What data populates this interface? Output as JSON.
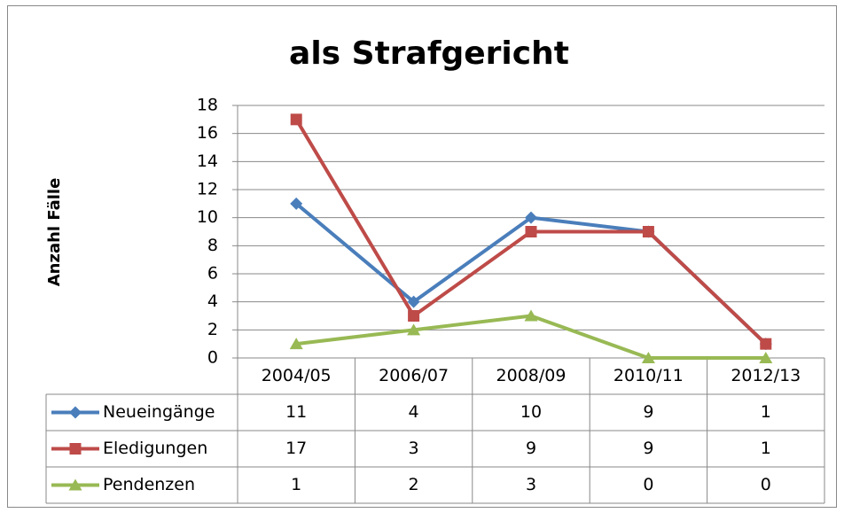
{
  "chart_data": {
    "type": "line",
    "title": "als Strafgericht",
    "y_label": "Anzahl Fälle",
    "categories": [
      "2004/05",
      "2006/07",
      "2008/09",
      "2010/11",
      "2012/13"
    ],
    "series": [
      {
        "name": "Neueingänge",
        "color": "#4a7ebb",
        "marker": "diamond",
        "values": [
          11,
          4,
          10,
          9,
          1
        ]
      },
      {
        "name": "Eledigungen",
        "color": "#be4b48",
        "marker": "square",
        "values": [
          17,
          3,
          9,
          9,
          1
        ]
      },
      {
        "name": "Pendenzen",
        "color": "#98b954",
        "marker": "triangle",
        "values": [
          1,
          2,
          3,
          0,
          0
        ]
      }
    ],
    "ylim": [
      0,
      18
    ],
    "yticks": [
      0,
      2,
      4,
      6,
      8,
      10,
      12,
      14,
      16,
      18
    ],
    "grid": true,
    "data_table": true
  }
}
